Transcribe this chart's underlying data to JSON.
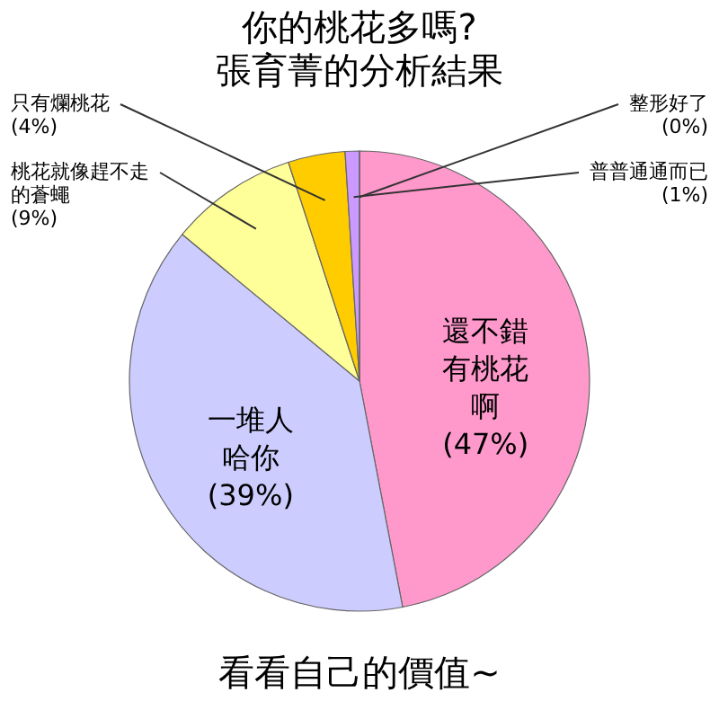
{
  "chart_data": {
    "type": "pie",
    "title": "你的桃花多嗎?",
    "subtitle": "張育菁的分析結果",
    "categories": [
      "還不錯有桃花啊",
      "一堆人哈你",
      "桃花就像趕不走的蒼蠅",
      "只有爛桃花",
      "普普通通而已",
      "整形好了"
    ],
    "values": [
      47,
      39,
      9,
      4,
      1,
      0
    ],
    "colors": [
      "#ff99cc",
      "#ccccff",
      "#ffff99",
      "#ffcc00",
      "#cc99ff",
      "#ccffcc"
    ],
    "value_labels": [
      "(47%)",
      "(39%)",
      "(9%)",
      "(4%)",
      "(1%)",
      "(0%)"
    ],
    "annotations": [
      "看看自己的價值~"
    ]
  }
}
